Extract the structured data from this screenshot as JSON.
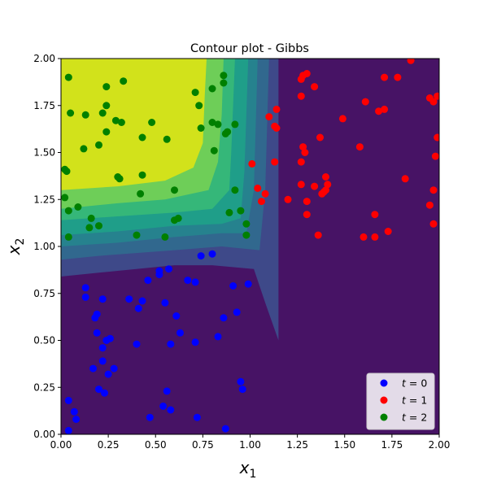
{
  "chart_data": {
    "type": "scatter",
    "title": "Contour plot - Gibbs",
    "xlabel": "x",
    "xlabel_sub": "1",
    "ylabel": "x",
    "ylabel_sub": "2",
    "xlim": [
      0,
      2
    ],
    "ylim": [
      0,
      2
    ],
    "xticks": [
      "0.00",
      "0.25",
      "0.50",
      "0.75",
      "1.00",
      "1.25",
      "1.50",
      "1.75",
      "2.00"
    ],
    "yticks": [
      "0.00",
      "0.25",
      "0.50",
      "0.75",
      "1.00",
      "1.25",
      "1.50",
      "1.75",
      "2.00"
    ],
    "grid": false,
    "legend_position": "lower-right",
    "contour": {
      "colors": [
        "#471365",
        "#3e4989",
        "#31688e",
        "#26828e",
        "#1f9e89",
        "#35b779",
        "#6ece58",
        "#d2e21b"
      ],
      "levels": [
        [
          [
            0,
            0.84
          ],
          [
            0.2,
            0.86
          ],
          [
            0.6,
            0.9
          ],
          [
            0.8,
            0.9
          ],
          [
            1.02,
            0.88
          ],
          [
            1.08,
            0.7
          ],
          [
            1.15,
            0.5
          ],
          [
            1.15,
            2
          ]
        ],
        [
          [
            0,
            0.93
          ],
          [
            0.2,
            0.95
          ],
          [
            0.6,
            0.98
          ],
          [
            0.85,
            1.0
          ],
          [
            1.05,
            0.98
          ],
          [
            1.08,
            1.3
          ],
          [
            1.1,
            2
          ]
        ],
        [
          [
            0,
            1.0
          ],
          [
            0.3,
            1.02
          ],
          [
            0.6,
            1.05
          ],
          [
            0.85,
            1.07
          ],
          [
            0.98,
            1.07
          ],
          [
            1.02,
            1.3
          ],
          [
            1.04,
            2
          ]
        ],
        [
          [
            0,
            1.06
          ],
          [
            0.3,
            1.08
          ],
          [
            0.6,
            1.11
          ],
          [
            0.85,
            1.12
          ],
          [
            0.95,
            1.15
          ],
          [
            0.97,
            1.4
          ],
          [
            0.99,
            2
          ]
        ],
        [
          [
            0,
            1.14
          ],
          [
            0.3,
            1.16
          ],
          [
            0.6,
            1.18
          ],
          [
            0.8,
            1.2
          ],
          [
            0.89,
            1.3
          ],
          [
            0.9,
            1.5
          ],
          [
            0.92,
            2
          ]
        ],
        [
          [
            0,
            1.2
          ],
          [
            0.3,
            1.23
          ],
          [
            0.55,
            1.25
          ],
          [
            0.78,
            1.3
          ],
          [
            0.83,
            1.45
          ],
          [
            0.85,
            1.7
          ],
          [
            0.86,
            2
          ]
        ],
        [
          [
            0,
            1.3
          ],
          [
            0.3,
            1.32
          ],
          [
            0.55,
            1.35
          ],
          [
            0.7,
            1.42
          ],
          [
            0.75,
            1.55
          ],
          [
            0.76,
            1.8
          ],
          [
            0.77,
            2
          ]
        ]
      ]
    },
    "series": [
      {
        "name": "t = 0",
        "label_main": "t",
        "label_value": "0",
        "color": "#0000ff",
        "points": [
          [
            0.52,
            0.87
          ],
          [
            0.52,
            0.85
          ],
          [
            0.57,
            0.88
          ],
          [
            0.74,
            0.95
          ],
          [
            0.8,
            0.96
          ],
          [
            0.67,
            0.82
          ],
          [
            0.71,
            0.81
          ],
          [
            0.46,
            0.82
          ],
          [
            0.13,
            0.78
          ],
          [
            0.13,
            0.73
          ],
          [
            0.36,
            0.72
          ],
          [
            0.43,
            0.71
          ],
          [
            0.41,
            0.67
          ],
          [
            0.55,
            0.7
          ],
          [
            0.91,
            0.79
          ],
          [
            0.99,
            0.8
          ],
          [
            0.19,
            0.64
          ],
          [
            0.18,
            0.62
          ],
          [
            0.22,
            0.72
          ],
          [
            0.61,
            0.63
          ],
          [
            0.86,
            0.62
          ],
          [
            0.93,
            0.65
          ],
          [
            0.19,
            0.54
          ],
          [
            0.26,
            0.51
          ],
          [
            0.24,
            0.5
          ],
          [
            0.22,
            0.46
          ],
          [
            0.4,
            0.48
          ],
          [
            0.58,
            0.48
          ],
          [
            0.63,
            0.54
          ],
          [
            0.71,
            0.49
          ],
          [
            0.83,
            0.52
          ],
          [
            0.22,
            0.39
          ],
          [
            0.17,
            0.35
          ],
          [
            0.28,
            0.35
          ],
          [
            0.25,
            0.32
          ],
          [
            0.95,
            0.28
          ],
          [
            0.96,
            0.24
          ],
          [
            0.2,
            0.24
          ],
          [
            0.23,
            0.22
          ],
          [
            0.56,
            0.23
          ],
          [
            0.54,
            0.15
          ],
          [
            0.58,
            0.13
          ],
          [
            0.47,
            0.09
          ],
          [
            0.72,
            0.09
          ],
          [
            0.04,
            0.18
          ],
          [
            0.07,
            0.12
          ],
          [
            0.08,
            0.08
          ],
          [
            0.04,
            0.02
          ],
          [
            0.87,
            0.03
          ]
        ]
      },
      {
        "name": "t = 1",
        "label_main": "t",
        "label_value": "1",
        "color": "#ff0000",
        "points": [
          [
            1.85,
            1.99
          ],
          [
            1.71,
            1.9
          ],
          [
            1.78,
            1.9
          ],
          [
            1.27,
            1.89
          ],
          [
            1.28,
            1.91
          ],
          [
            1.3,
            1.92
          ],
          [
            1.27,
            1.8
          ],
          [
            1.34,
            1.85
          ],
          [
            1.61,
            1.77
          ],
          [
            1.68,
            1.72
          ],
          [
            1.71,
            1.73
          ],
          [
            1.14,
            1.73
          ],
          [
            1.95,
            1.79
          ],
          [
            1.97,
            1.77
          ],
          [
            1.99,
            1.8
          ],
          [
            1.1,
            1.69
          ],
          [
            1.13,
            1.64
          ],
          [
            1.14,
            1.63
          ],
          [
            1.49,
            1.68
          ],
          [
            1.37,
            1.58
          ],
          [
            1.99,
            1.58
          ],
          [
            1.28,
            1.53
          ],
          [
            1.29,
            1.5
          ],
          [
            1.58,
            1.53
          ],
          [
            1.01,
            1.44
          ],
          [
            1.13,
            1.45
          ],
          [
            1.98,
            1.48
          ],
          [
            1.27,
            1.45
          ],
          [
            1.4,
            1.37
          ],
          [
            1.82,
            1.36
          ],
          [
            1.27,
            1.33
          ],
          [
            1.34,
            1.32
          ],
          [
            1.41,
            1.33
          ],
          [
            1.4,
            1.3
          ],
          [
            1.04,
            1.31
          ],
          [
            1.08,
            1.28
          ],
          [
            1.06,
            1.24
          ],
          [
            1.2,
            1.25
          ],
          [
            1.3,
            1.24
          ],
          [
            1.39,
            1.29
          ],
          [
            1.38,
            1.28
          ],
          [
            1.97,
            1.3
          ],
          [
            1.95,
            1.22
          ],
          [
            1.3,
            1.17
          ],
          [
            1.66,
            1.17
          ],
          [
            1.97,
            1.12
          ],
          [
            1.36,
            1.06
          ],
          [
            1.6,
            1.05
          ],
          [
            1.66,
            1.05
          ],
          [
            1.73,
            1.08
          ]
        ]
      },
      {
        "name": "t = 2",
        "label_main": "t",
        "label_value": "2",
        "color": "#008000",
        "points": [
          [
            0.04,
            1.9
          ],
          [
            0.24,
            1.85
          ],
          [
            0.33,
            1.88
          ],
          [
            0.86,
            1.91
          ],
          [
            0.86,
            1.87
          ],
          [
            0.8,
            1.84
          ],
          [
            0.71,
            1.82
          ],
          [
            0.05,
            1.71
          ],
          [
            0.13,
            1.7
          ],
          [
            0.22,
            1.71
          ],
          [
            0.24,
            1.75
          ],
          [
            0.73,
            1.75
          ],
          [
            0.29,
            1.67
          ],
          [
            0.32,
            1.66
          ],
          [
            0.48,
            1.66
          ],
          [
            0.8,
            1.66
          ],
          [
            0.83,
            1.65
          ],
          [
            0.92,
            1.65
          ],
          [
            0.24,
            1.61
          ],
          [
            0.74,
            1.63
          ],
          [
            0.43,
            1.58
          ],
          [
            0.56,
            1.57
          ],
          [
            0.87,
            1.6
          ],
          [
            0.88,
            1.61
          ],
          [
            0.12,
            1.52
          ],
          [
            0.2,
            1.54
          ],
          [
            0.81,
            1.51
          ],
          [
            0.02,
            1.41
          ],
          [
            0.03,
            1.4
          ],
          [
            0.3,
            1.37
          ],
          [
            0.31,
            1.36
          ],
          [
            0.43,
            1.38
          ],
          [
            0.92,
            1.3
          ],
          [
            0.6,
            1.3
          ],
          [
            0.42,
            1.28
          ],
          [
            0.02,
            1.26
          ],
          [
            0.04,
            1.19
          ],
          [
            0.09,
            1.21
          ],
          [
            0.89,
            1.18
          ],
          [
            0.95,
            1.19
          ],
          [
            0.16,
            1.15
          ],
          [
            0.62,
            1.15
          ],
          [
            0.6,
            1.14
          ],
          [
            0.15,
            1.1
          ],
          [
            0.2,
            1.11
          ],
          [
            0.98,
            1.12
          ],
          [
            0.98,
            1.06
          ],
          [
            0.04,
            1.05
          ],
          [
            0.4,
            1.06
          ],
          [
            0.55,
            1.05
          ]
        ]
      }
    ]
  }
}
